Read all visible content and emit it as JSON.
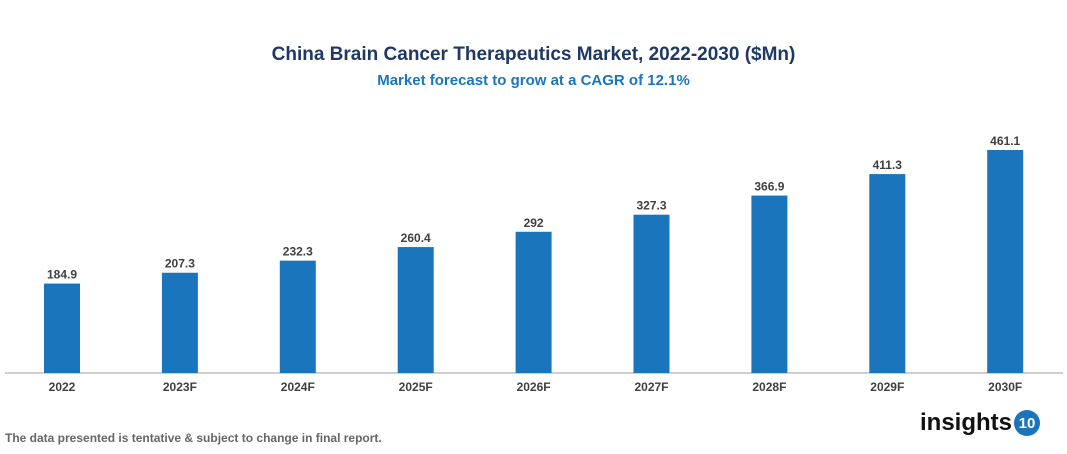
{
  "chart_data": {
    "type": "bar",
    "title": "China Brain Cancer Therapeutics Market, 2022-2030 ($Mn)",
    "subtitle": "Market forecast to grow at a CAGR of 12.1%",
    "categories": [
      "2022",
      "2023F",
      "2024F",
      "2025F",
      "2026F",
      "2027F",
      "2028F",
      "2029F",
      "2030F"
    ],
    "values": [
      184.9,
      207.3,
      232.3,
      260.4,
      292,
      327.3,
      366.9,
      411.3,
      461.1
    ],
    "value_labels": [
      "184.9",
      "207.3",
      "232.3",
      "260.4",
      "292",
      "327.3",
      "366.9",
      "411.3",
      "461.1"
    ],
    "xlabel": "",
    "ylabel": "",
    "ylim": [
      0,
      461.1
    ],
    "grid": false,
    "bar_color": "#1a75bc"
  },
  "footer": {
    "note": "The data presented is tentative & subject to change in final report.",
    "logo_text": "insights",
    "logo_number": "10"
  }
}
